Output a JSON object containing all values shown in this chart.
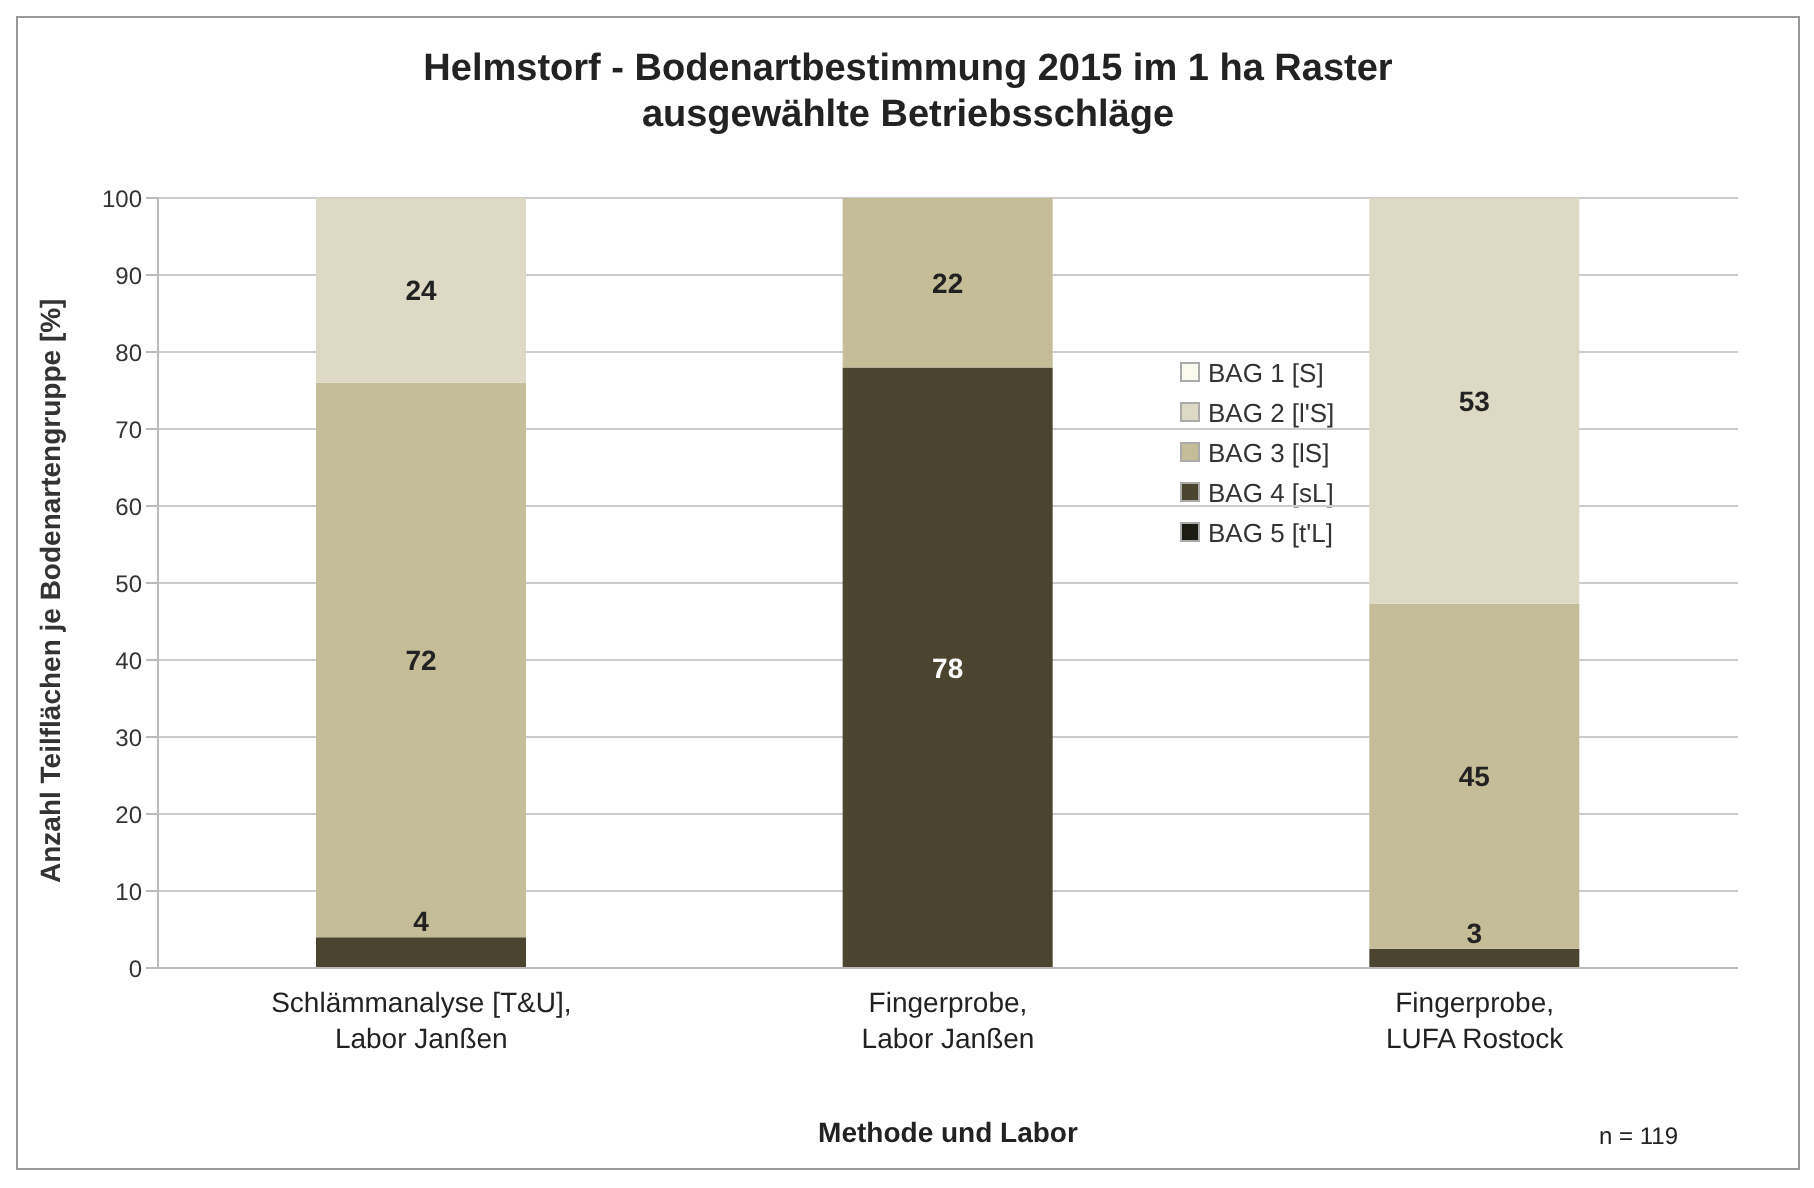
{
  "chart_data": {
    "type": "bar",
    "stacked": true,
    "title": "Helmstorf - Bodenartbestimmung 2015 im 1 ha Raster\nausgewählte Betriebsschläge",
    "xlabel": "Methode und Labor",
    "ylabel": "Anzahl Teilflächen je Bodenartengruppe [%]",
    "categories": [
      "Schlämmanalyse [T&U],\nLabor Janßen",
      "Fingerprobe,\nLabor Janßen",
      "Fingerprobe,\nLUFA Rostock"
    ],
    "series": [
      {
        "name": "BAG 5 [t'L]",
        "color": "#1c1c12",
        "values": [
          0,
          0,
          0
        ],
        "value_labels": [
          null,
          null,
          null
        ]
      },
      {
        "name": "BAG 4 [sL]",
        "color": "#4b4530",
        "values": [
          4,
          78,
          2.5
        ],
        "value_labels": [
          "4",
          "78",
          "3"
        ]
      },
      {
        "name": "BAG 3 [lS]",
        "color": "#c5bd97",
        "values": [
          72,
          22,
          44.8
        ],
        "value_labels": [
          "72",
          "22",
          "45"
        ]
      },
      {
        "name": "BAG 2 [l'S]",
        "color": "#ddd9c5",
        "values": [
          24,
          0,
          52.7
        ],
        "value_labels": [
          "24",
          null,
          "53"
        ]
      },
      {
        "name": "BAG 1 [S]",
        "color": "#fbfaef",
        "values": [
          0,
          0,
          0
        ],
        "value_labels": [
          null,
          null,
          null
        ]
      }
    ],
    "ylim": [
      0,
      100
    ],
    "yticks": [
      0,
      10,
      20,
      30,
      40,
      50,
      60,
      70,
      80,
      90,
      100
    ],
    "grid": "y",
    "legend": "right",
    "annotations": [
      "n = 119"
    ]
  }
}
